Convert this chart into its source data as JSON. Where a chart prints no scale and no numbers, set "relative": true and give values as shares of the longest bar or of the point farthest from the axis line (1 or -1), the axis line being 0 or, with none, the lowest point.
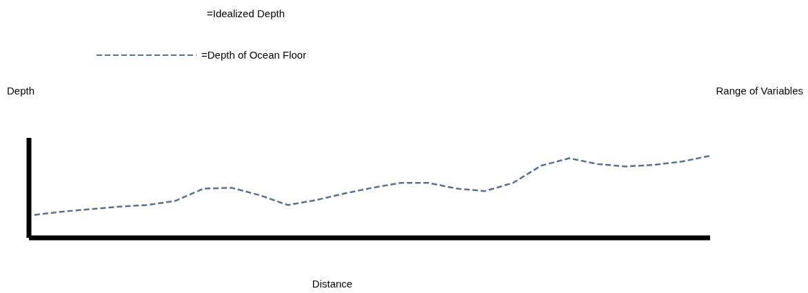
{
  "chart_data": {
    "type": "line",
    "relative": true,
    "xlabel": "Distance",
    "categories": [
      null,
      null,
      null,
      null,
      null,
      null,
      null,
      null,
      null,
      null,
      null,
      null,
      null,
      null,
      null,
      null,
      null,
      null,
      null,
      null,
      null,
      null,
      null,
      null,
      null
    ],
    "series": [
      {
        "name": "=Depth of Ocean Floor",
        "color": "#5a6e8a",
        "values": [
          0.28,
          0.32,
          0.35,
          0.38,
          0.4,
          0.45,
          0.6,
          0.61,
          0.52,
          0.4,
          0.46,
          0.54,
          0.61,
          0.67,
          0.67,
          0.6,
          0.57,
          0.67,
          0.88,
          0.97,
          0.9,
          0.87,
          0.89,
          0.93,
          1
        ]
      }
    ],
    "line_style": "dashed",
    "legend": "top",
    "annotations": [
      "=Idealized Depth",
      "Range of Variables",
      "Depth"
    ]
  }
}
